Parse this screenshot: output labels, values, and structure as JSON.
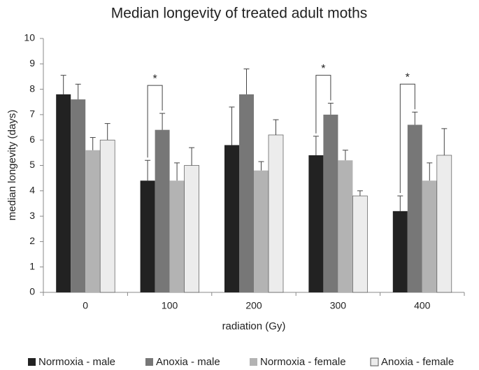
{
  "chart_data": {
    "type": "bar",
    "title": "Median longevity of treated adult moths",
    "x_label": "radiation (Gy)",
    "y_label": "median longevity (days)",
    "categories": [
      "0",
      "100",
      "200",
      "300",
      "400"
    ],
    "series": [
      {
        "name": "Normoxia - male",
        "color": "#222222",
        "values": [
          7.8,
          4.4,
          5.8,
          5.4,
          3.2
        ],
        "errors": [
          0.75,
          0.8,
          1.5,
          0.75,
          0.6
        ]
      },
      {
        "name": "Anoxia - male",
        "color": "#777777",
        "values": [
          7.6,
          6.4,
          7.8,
          7.0,
          6.6
        ],
        "errors": [
          0.6,
          0.65,
          1.0,
          0.45,
          0.5
        ]
      },
      {
        "name": "Normoxia - female",
        "color": "#b3b3b3",
        "values": [
          5.6,
          4.4,
          4.8,
          5.2,
          4.4
        ],
        "errors": [
          0.5,
          0.7,
          0.35,
          0.4,
          0.7
        ]
      },
      {
        "name": "Anoxia - female",
        "color": "#ececec",
        "values": [
          6.0,
          5.0,
          6.2,
          3.8,
          5.4
        ],
        "errors": [
          0.65,
          0.7,
          0.6,
          0.2,
          1.05
        ]
      }
    ],
    "annotations": [
      {
        "category": "100",
        "text": "*"
      },
      {
        "category": "300",
        "text": "*"
      },
      {
        "category": "400",
        "text": "*"
      }
    ],
    "ylim": [
      0,
      10
    ],
    "yticks": [
      0,
      1,
      2,
      3,
      4,
      5,
      6,
      7,
      8,
      9,
      10
    ],
    "grid": false,
    "legend": "bottom"
  }
}
